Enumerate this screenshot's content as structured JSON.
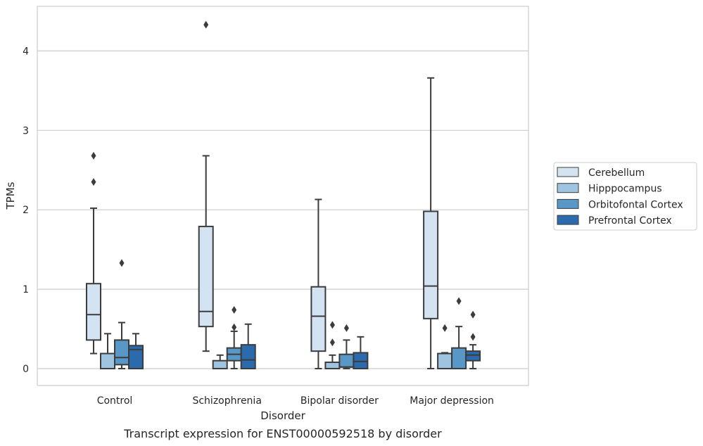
{
  "chart_data": {
    "type": "box",
    "xlabel": "Disorder",
    "ylabel": "TPMs",
    "caption": "Transcript expression for ENST00000592518 by disorder",
    "ylim": [
      -0.2,
      4.55
    ],
    "yticks": [
      0,
      1,
      2,
      3,
      4
    ],
    "grid": true,
    "legend_position": "right",
    "categories": [
      "Control",
      "Schizophrenia",
      "Bipolar disorder",
      "Major depression"
    ],
    "series": [
      {
        "name": "Cerebellum",
        "color": "#d3e3f2",
        "boxes": [
          {
            "whisker_low": 0.19,
            "q1": 0.36,
            "median": 0.68,
            "q3": 1.07,
            "whisker_high": 2.02,
            "outliers": [
              2.35,
              2.68
            ]
          },
          {
            "whisker_low": 0.22,
            "q1": 0.53,
            "median": 0.72,
            "q3": 1.79,
            "whisker_high": 2.68,
            "outliers": [
              4.33
            ]
          },
          {
            "whisker_low": 0.0,
            "q1": 0.22,
            "median": 0.66,
            "q3": 1.03,
            "whisker_high": 2.13,
            "outliers": []
          },
          {
            "whisker_low": 0.0,
            "q1": 0.63,
            "median": 1.04,
            "q3": 1.98,
            "whisker_high": 3.66,
            "outliers": []
          }
        ]
      },
      {
        "name": "Hipppocampus",
        "color": "#9ec4e0",
        "boxes": [
          {
            "whisker_low": 0.0,
            "q1": 0.0,
            "median": 0.0,
            "q3": 0.19,
            "whisker_high": 0.44,
            "outliers": []
          },
          {
            "whisker_low": 0.0,
            "q1": 0.0,
            "median": 0.0,
            "q3": 0.1,
            "whisker_high": 0.17,
            "outliers": []
          },
          {
            "whisker_low": 0.0,
            "q1": 0.0,
            "median": 0.0,
            "q3": 0.08,
            "whisker_high": 0.17,
            "outliers": [
              0.33,
              0.55
            ]
          },
          {
            "whisker_low": 0.0,
            "q1": 0.0,
            "median": 0.0,
            "q3": 0.19,
            "whisker_high": 0.2,
            "outliers": [
              0.51
            ]
          }
        ]
      },
      {
        "name": "Orbitofontal Cortex",
        "color": "#5998c6",
        "boxes": [
          {
            "whisker_low": 0.0,
            "q1": 0.05,
            "median": 0.14,
            "q3": 0.36,
            "whisker_high": 0.58,
            "outliers": [
              1.33
            ]
          },
          {
            "whisker_low": 0.0,
            "q1": 0.1,
            "median": 0.18,
            "q3": 0.26,
            "whisker_high": 0.47,
            "outliers": [
              0.52,
              0.74
            ]
          },
          {
            "whisker_low": 0.0,
            "q1": 0.02,
            "median": 0.02,
            "q3": 0.18,
            "whisker_high": 0.36,
            "outliers": [
              0.51
            ]
          },
          {
            "whisker_low": 0.0,
            "q1": 0.0,
            "median": 0.0,
            "q3": 0.26,
            "whisker_high": 0.53,
            "outliers": [
              0.85
            ]
          }
        ]
      },
      {
        "name": "Prefrontal Cortex",
        "color": "#2a6aad",
        "boxes": [
          {
            "whisker_low": 0.0,
            "q1": 0.0,
            "median": 0.24,
            "q3": 0.29,
            "whisker_high": 0.44,
            "outliers": []
          },
          {
            "whisker_low": 0.0,
            "q1": 0.0,
            "median": 0.11,
            "q3": 0.3,
            "whisker_high": 0.56,
            "outliers": []
          },
          {
            "whisker_low": 0.0,
            "q1": 0.0,
            "median": 0.09,
            "q3": 0.2,
            "whisker_high": 0.4,
            "outliers": []
          },
          {
            "whisker_low": 0.0,
            "q1": 0.1,
            "median": 0.17,
            "q3": 0.22,
            "whisker_high": 0.3,
            "outliers": [
              0.4,
              0.68
            ]
          }
        ]
      }
    ]
  }
}
